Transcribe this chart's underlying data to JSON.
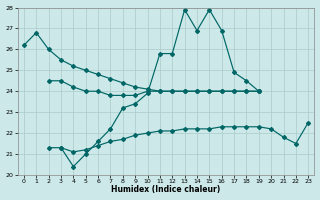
{
  "xlabel": "Humidex (Indice chaleur)",
  "background_color": "#cce8e8",
  "line_color": "#006666",
  "grid_color": "#aacccc",
  "ylim": [
    20,
    28
  ],
  "yticks": [
    20,
    21,
    22,
    23,
    24,
    25,
    26,
    27,
    28
  ],
  "xlim": [
    -0.5,
    23.5
  ],
  "xticks": [
    0,
    1,
    2,
    3,
    4,
    5,
    6,
    7,
    8,
    9,
    10,
    11,
    12,
    13,
    14,
    15,
    16,
    17,
    18,
    19,
    20,
    21,
    22,
    23
  ],
  "ser1_x": [
    0,
    1,
    2,
    3,
    4,
    5,
    6,
    7,
    8,
    9,
    10,
    11,
    12,
    13,
    14,
    15,
    16,
    17,
    18,
    19
  ],
  "ser1_y": [
    26.2,
    26.8,
    26.0,
    25.5,
    25.2,
    25.0,
    24.8,
    24.6,
    24.4,
    24.2,
    24.1,
    24.0,
    24.0,
    24.0,
    24.0,
    24.0,
    24.0,
    24.0,
    24.0,
    24.0
  ],
  "ser2_x": [
    2,
    3,
    4,
    5,
    6,
    7,
    8,
    9,
    10,
    11,
    12,
    13,
    14,
    15,
    16,
    17,
    18,
    19
  ],
  "ser2_y": [
    24.5,
    24.5,
    24.2,
    24.0,
    24.0,
    23.8,
    23.8,
    23.8,
    24.0,
    24.0,
    24.0,
    24.0,
    24.0,
    24.0,
    24.0,
    24.0,
    24.0,
    24.0
  ],
  "ser3_x": [
    3,
    4,
    5,
    6,
    7,
    8,
    9,
    10,
    11,
    12,
    13,
    14,
    15,
    16,
    17,
    18,
    19
  ],
  "ser3_y": [
    21.3,
    20.4,
    21.0,
    21.6,
    22.2,
    23.2,
    23.4,
    23.9,
    25.8,
    25.8,
    27.9,
    26.9,
    27.9,
    26.9,
    24.9,
    24.5,
    24.0
  ],
  "ser4_x": [
    2,
    3,
    4,
    5,
    6,
    7,
    8,
    9,
    10,
    11,
    12,
    13,
    14,
    15,
    16,
    17,
    18,
    19,
    20,
    21,
    22,
    23
  ],
  "ser4_y": [
    21.3,
    21.3,
    21.1,
    21.2,
    21.4,
    21.6,
    21.7,
    21.9,
    22.0,
    22.1,
    22.1,
    22.2,
    22.2,
    22.2,
    22.3,
    22.3,
    22.3,
    22.3,
    22.2,
    21.8,
    21.5,
    22.5
  ]
}
